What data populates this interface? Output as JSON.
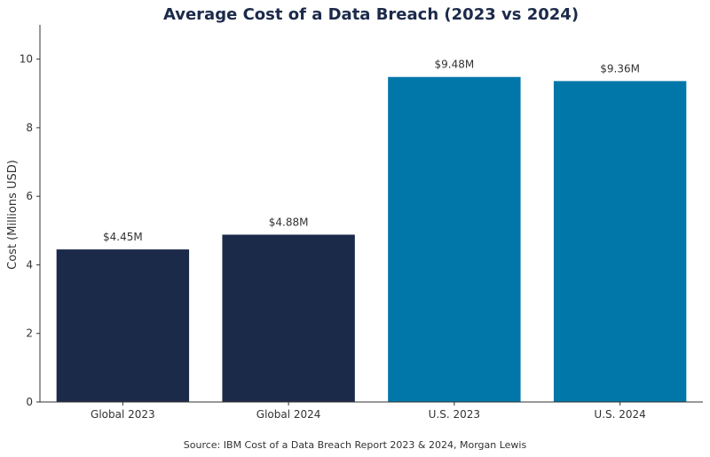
{
  "chart_data": {
    "type": "bar",
    "title": "Average Cost of a Data Breach (2023 vs 2024)",
    "xlabel": "",
    "ylabel": "Cost (Millions USD)",
    "ylim": [
      0,
      11
    ],
    "yticks": [
      0,
      2,
      4,
      6,
      8,
      10
    ],
    "categories": [
      "Global 2023",
      "Global 2024",
      "U.S. 2023",
      "U.S. 2024"
    ],
    "values": [
      4.45,
      4.88,
      9.48,
      9.36
    ],
    "data_labels": [
      "$4.45M",
      "$4.88M",
      "$9.48M",
      "$9.36M"
    ],
    "colors": [
      "#1c2a4a",
      "#1c2a4a",
      "#0077a8",
      "#0077a8"
    ],
    "grid": false,
    "source": "Source: IBM Cost of a Data Breach Report 2023 & 2024, Morgan Lewis"
  }
}
